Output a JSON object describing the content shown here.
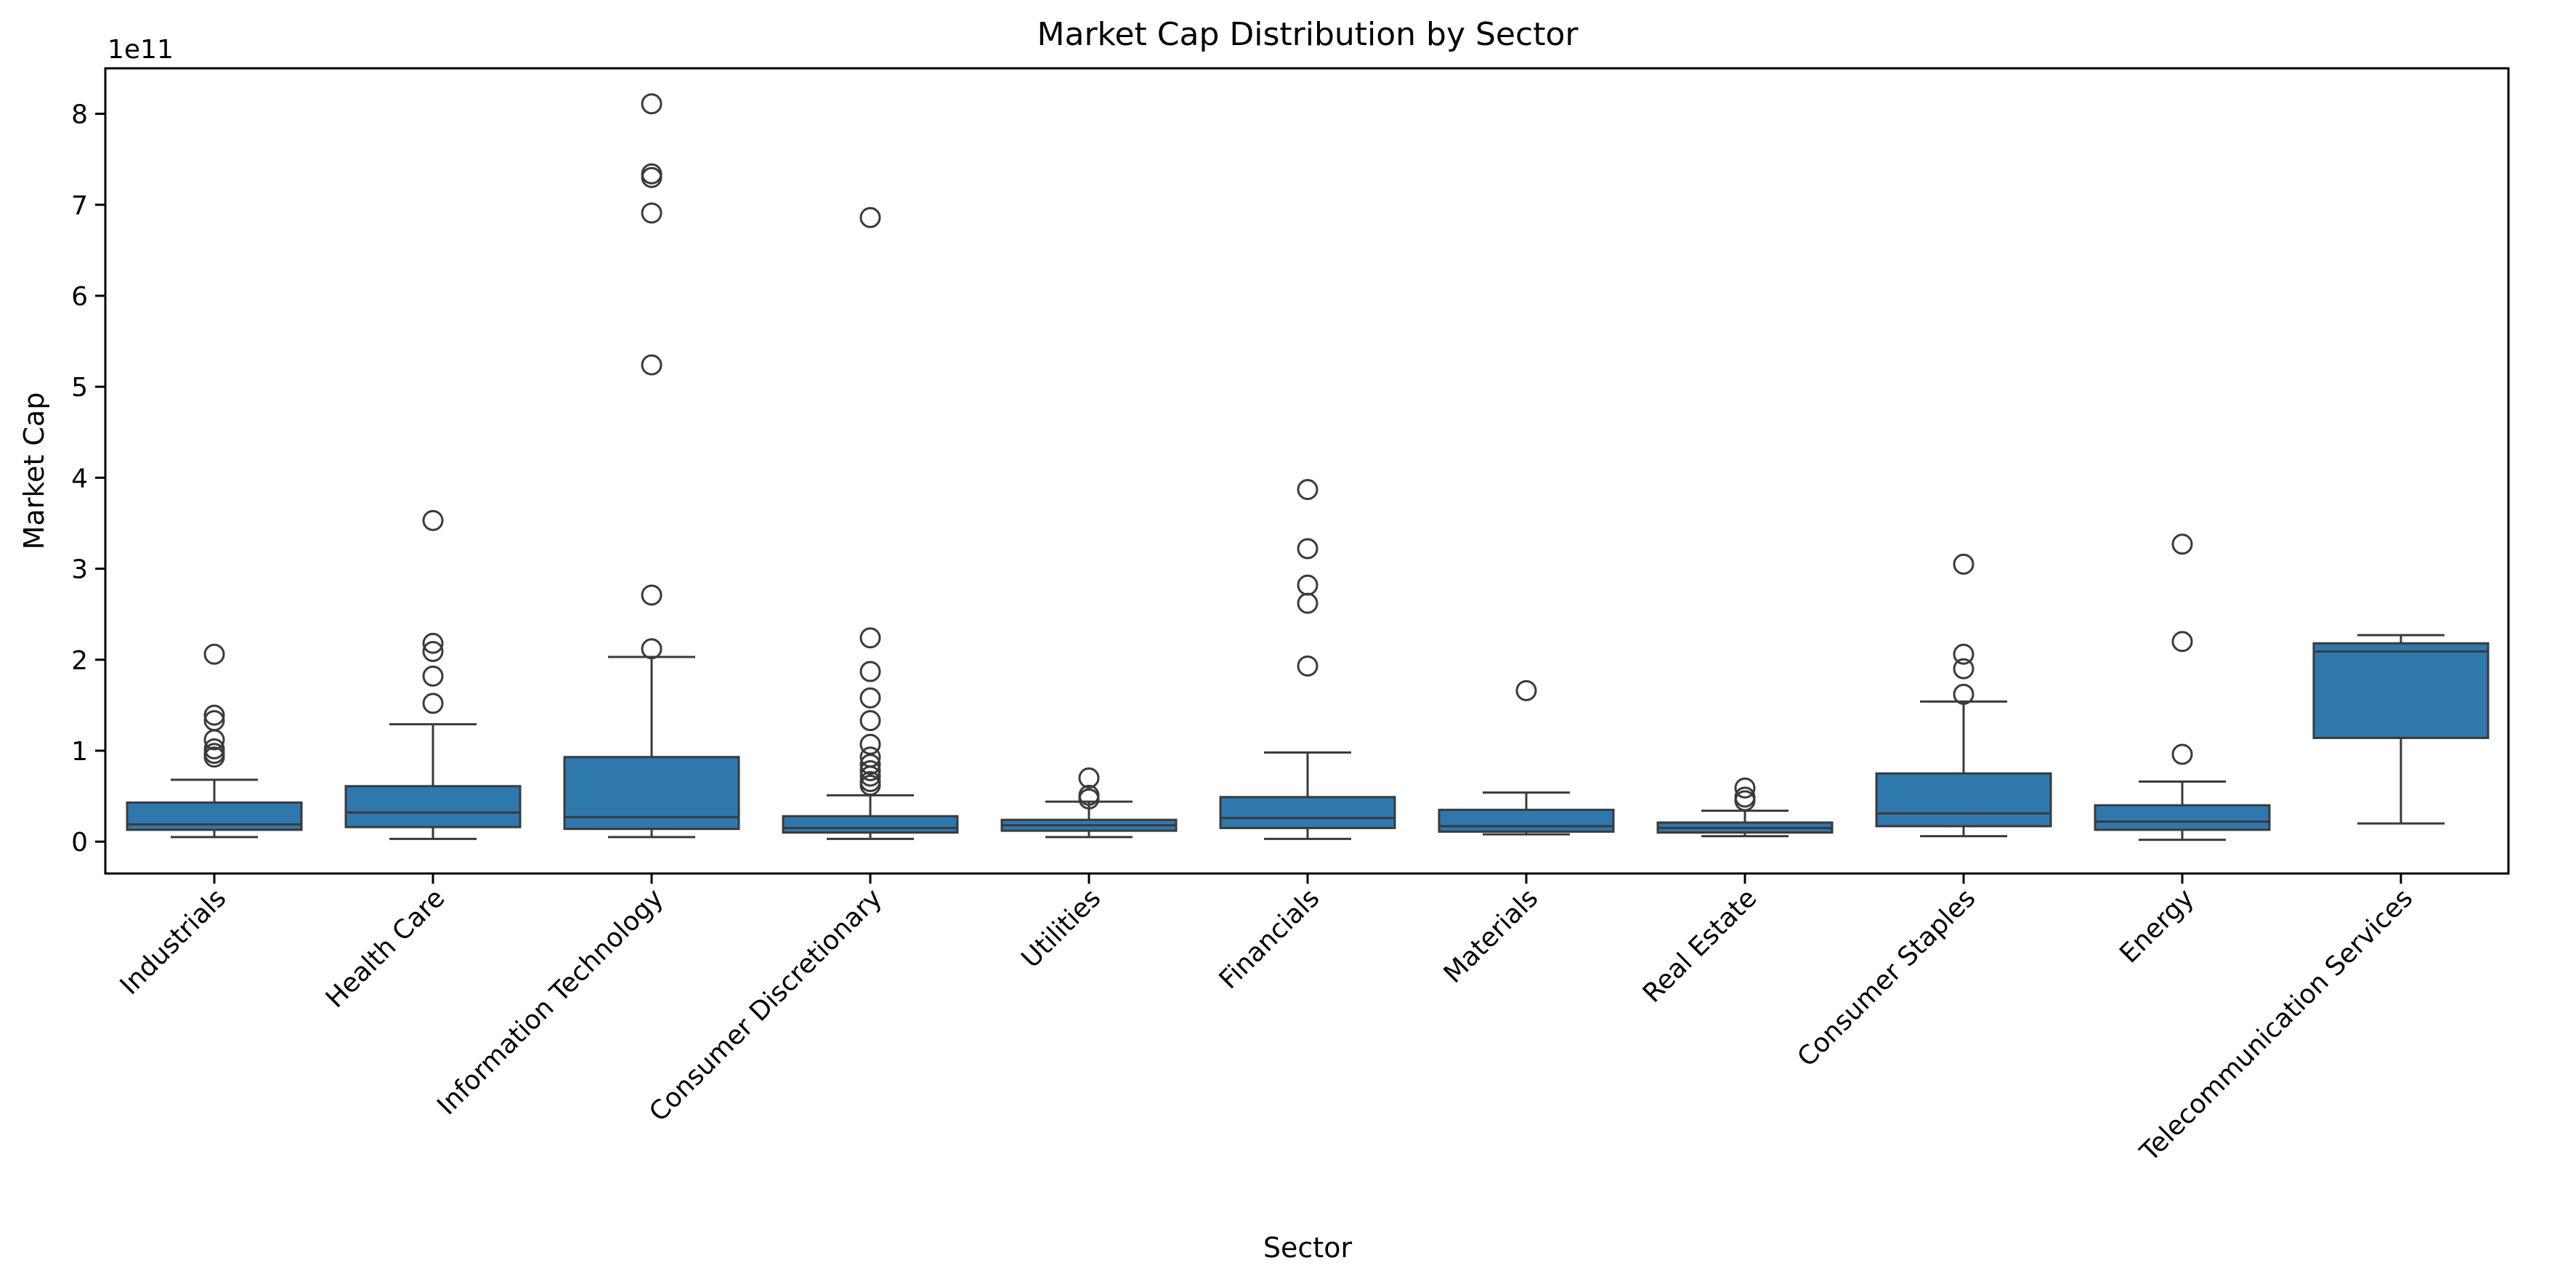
{
  "chart_data": {
    "type": "box",
    "title": "Market Cap Distribution by Sector",
    "xlabel": "Sector",
    "ylabel": "Market Cap",
    "y_offset_label": "1e11",
    "y_scale_factor": 100000000000,
    "ylim": [
      -0.35,
      8.5
    ],
    "yticks": [
      0,
      1,
      2,
      3,
      4,
      5,
      6,
      7,
      8
    ],
    "box_color": "#2f78ad",
    "edge_color": "#3a3a3a",
    "grid": false,
    "legend": "none",
    "categories": [
      "Industrials",
      "Health Care",
      "Information Technology",
      "Consumer Discretionary",
      "Utilities",
      "Financials",
      "Materials",
      "Real Estate",
      "Consumer Staples",
      "Energy",
      "Telecommunication Services"
    ],
    "boxes": [
      {
        "sector": "Industrials",
        "whisker_low": 0.05,
        "q1": 0.13,
        "median": 0.19,
        "q3": 0.43,
        "whisker_high": 0.68,
        "outliers": [
          2.06,
          1.39,
          1.33,
          1.12,
          1.02,
          0.97,
          0.93
        ]
      },
      {
        "sector": "Health Care",
        "whisker_low": 0.03,
        "q1": 0.16,
        "median": 0.32,
        "q3": 0.61,
        "whisker_high": 1.29,
        "outliers": [
          3.53,
          2.18,
          2.09,
          1.82,
          1.52
        ]
      },
      {
        "sector": "Information Technology",
        "whisker_low": 0.05,
        "q1": 0.14,
        "median": 0.27,
        "q3": 0.93,
        "whisker_high": 2.03,
        "outliers": [
          8.11,
          7.34,
          7.3,
          6.91,
          5.24,
          2.71,
          2.12
        ]
      },
      {
        "sector": "Consumer Discretionary",
        "whisker_low": 0.03,
        "q1": 0.1,
        "median": 0.15,
        "q3": 0.28,
        "whisker_high": 0.51,
        "outliers": [
          6.86,
          2.24,
          1.87,
          1.58,
          1.33,
          1.07,
          0.93,
          0.85,
          0.78,
          0.72,
          0.66,
          0.62
        ]
      },
      {
        "sector": "Utilities",
        "whisker_low": 0.05,
        "q1": 0.12,
        "median": 0.18,
        "q3": 0.24,
        "whisker_high": 0.44,
        "outliers": [
          0.7,
          0.51,
          0.47
        ]
      },
      {
        "sector": "Financials",
        "whisker_low": 0.03,
        "q1": 0.15,
        "median": 0.26,
        "q3": 0.49,
        "whisker_high": 0.98,
        "outliers": [
          3.87,
          3.22,
          2.82,
          2.62,
          1.93
        ]
      },
      {
        "sector": "Materials",
        "whisker_low": 0.08,
        "q1": 0.11,
        "median": 0.17,
        "q3": 0.35,
        "whisker_high": 0.54,
        "outliers": [
          1.66
        ]
      },
      {
        "sector": "Real Estate",
        "whisker_low": 0.06,
        "q1": 0.1,
        "median": 0.15,
        "q3": 0.21,
        "whisker_high": 0.34,
        "outliers": [
          0.59,
          0.49,
          0.45
        ]
      },
      {
        "sector": "Consumer Staples",
        "whisker_low": 0.06,
        "q1": 0.17,
        "median": 0.31,
        "q3": 0.75,
        "whisker_high": 1.54,
        "outliers": [
          3.05,
          2.06,
          1.9,
          1.62
        ]
      },
      {
        "sector": "Energy",
        "whisker_low": 0.02,
        "q1": 0.13,
        "median": 0.22,
        "q3": 0.4,
        "whisker_high": 0.66,
        "outliers": [
          3.27,
          2.2,
          0.96
        ]
      },
      {
        "sector": "Telecommunication Services",
        "whisker_low": 0.2,
        "q1": 1.14,
        "median": 2.09,
        "q3": 2.18,
        "whisker_high": 2.27,
        "outliers": []
      }
    ]
  }
}
